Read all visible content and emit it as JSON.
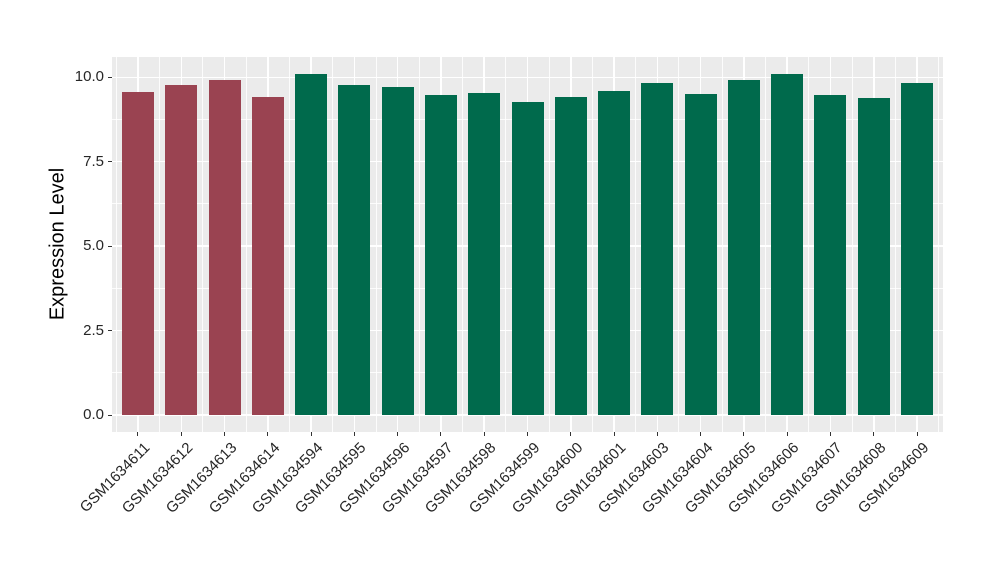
{
  "chart_data": {
    "type": "bar",
    "title": "",
    "xlabel": "",
    "ylabel": "Expression Level",
    "categories": [
      "GSM1634611",
      "GSM1634612",
      "GSM1634613",
      "GSM1634614",
      "GSM1634594",
      "GSM1634595",
      "GSM1634596",
      "GSM1634597",
      "GSM1634598",
      "GSM1634599",
      "GSM1634600",
      "GSM1634601",
      "GSM1634603",
      "GSM1634604",
      "GSM1634605",
      "GSM1634606",
      "GSM1634607",
      "GSM1634608",
      "GSM1634609"
    ],
    "values": [
      9.55,
      9.78,
      9.93,
      9.42,
      10.1,
      9.76,
      9.72,
      9.49,
      9.52,
      9.28,
      9.42,
      9.6,
      9.84,
      9.5,
      9.92,
      10.09,
      9.47,
      9.4,
      9.83
    ],
    "bar_colors": [
      "#9A4351",
      "#9A4351",
      "#9A4351",
      "#9A4351",
      "#006A4C",
      "#006A4C",
      "#006A4C",
      "#006A4C",
      "#006A4C",
      "#006A4C",
      "#006A4C",
      "#006A4C",
      "#006A4C",
      "#006A4C",
      "#006A4C",
      "#006A4C",
      "#006A4C",
      "#006A4C",
      "#006A4C"
    ],
    "palette": {
      "group_red": "#9A4351",
      "group_green": "#006A4C"
    },
    "y_ticks": [
      0.0,
      2.5,
      5.0,
      7.5,
      10.0
    ],
    "y_tick_labels": [
      "0.0",
      "2.5",
      "5.0",
      "7.5",
      "10.0"
    ],
    "y_minor_ticks": [
      1.25,
      3.75,
      6.25,
      8.75
    ],
    "ylim": [
      -0.5,
      10.6
    ],
    "x_tick_rotation_deg": 45,
    "grid": true,
    "legend_position": "none",
    "panel_bg": "#EBEBEB",
    "grid_color": "#FFFFFF",
    "tick_color": "#333333",
    "axis_text_color": "#262626"
  }
}
